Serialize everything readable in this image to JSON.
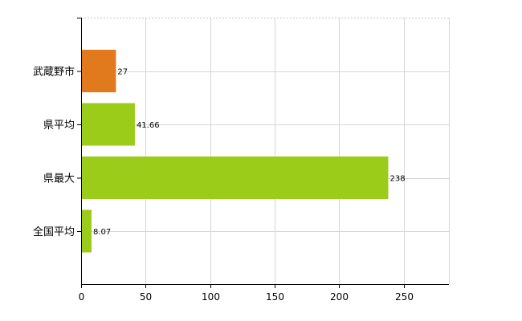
{
  "chart_data": {
    "type": "bar",
    "orientation": "horizontal",
    "categories": [
      "武蔵野市",
      "県平均",
      "県最大",
      "全国平均"
    ],
    "values": [
      27,
      41.66,
      238,
      8.07
    ],
    "value_labels": [
      "27",
      "41.66",
      "238",
      "8.07"
    ],
    "bar_colors": [
      "#e07a1c",
      "#9ccc1a",
      "#9ccc1a",
      "#9ccc1a"
    ],
    "xlim": [
      0,
      285
    ],
    "xticks": [
      0,
      50,
      100,
      150,
      200,
      250
    ],
    "xtick_labels": [
      "0",
      "50",
      "100",
      "150",
      "200",
      "250"
    ],
    "grid": true,
    "legend": "none"
  }
}
